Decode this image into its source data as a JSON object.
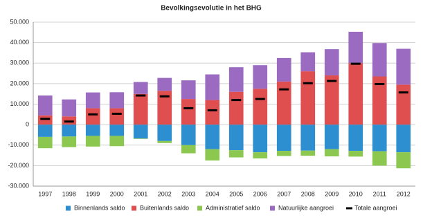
{
  "chart_data": {
    "type": "bar",
    "stacked": true,
    "title": "Bevolkingsevolutie in het BHG",
    "categories": [
      "1997",
      "1998",
      "1999",
      "2000",
      "2001",
      "2002",
      "2003",
      "2004",
      "2005",
      "2006",
      "2007",
      "2008",
      "2009",
      "2010",
      "2011",
      "2012"
    ],
    "series": [
      {
        "name": "Binnenlands saldo",
        "color": "#2e8fd0",
        "values": [
          -6000,
          -5800,
          -5500,
          -5500,
          -6800,
          -8000,
          -10000,
          -12000,
          -12500,
          -13500,
          -12800,
          -12700,
          -12000,
          -12800,
          -13000,
          -13500
        ]
      },
      {
        "name": "Buitenlands saldo",
        "color": "#e04f4f",
        "values": [
          4500,
          4000,
          8000,
          8000,
          15000,
          16500,
          12500,
          12000,
          16000,
          17500,
          21000,
          26000,
          24000,
          30000,
          23500,
          19500
        ]
      },
      {
        "name": "Administratief saldo",
        "color": "#8cc850",
        "values": [
          -5500,
          -5200,
          -5200,
          -5000,
          -200,
          -1000,
          -4000,
          -5500,
          -3500,
          -3000,
          -2500,
          -2500,
          -3500,
          -2800,
          -7000,
          -7800
        ]
      },
      {
        "name": "Natuurlijke aangroei",
        "color": "#9b6bc2",
        "values": [
          9700,
          8300,
          7700,
          7800,
          5800,
          6300,
          9100,
          12500,
          12000,
          11500,
          11500,
          9300,
          12800,
          15300,
          16300,
          17500
        ]
      },
      {
        "name": "Totale aangroei",
        "color": "#000000",
        "type": "marker",
        "values": [
          2800,
          1500,
          5000,
          5300,
          14200,
          13800,
          8000,
          7000,
          12000,
          12500,
          17200,
          20200,
          21300,
          29700,
          19800,
          15700
        ]
      }
    ],
    "ylim": [
      -30000,
      50000
    ],
    "yticks": [
      {
        "value": -30000,
        "label": "-30.000"
      },
      {
        "value": -20000,
        "label": "-20.000"
      },
      {
        "value": -10000,
        "label": "-10.000"
      },
      0,
      {
        "value": 10000,
        "label": "10.000"
      },
      {
        "value": 20000,
        "label": "20.000"
      },
      {
        "value": 30000,
        "label": "30.000"
      },
      {
        "value": 40000,
        "label": "40.000"
      },
      {
        "value": 50000,
        "label": "50.000"
      }
    ],
    "grid": true,
    "legend": "bottom"
  }
}
